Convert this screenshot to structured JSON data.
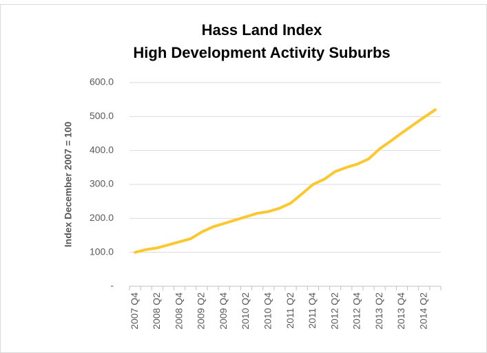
{
  "chart_data": {
    "type": "line",
    "title": [
      "Hass Land Index",
      "High Development Activity Suburbs"
    ],
    "y_label": "Index December 2007 = 100",
    "categories": [
      "2007 Q4",
      null,
      "2008 Q2",
      null,
      "2008 Q4",
      null,
      "2009 Q2",
      null,
      "2009 Q4",
      null,
      "2010 Q2",
      null,
      "2010 Q4",
      null,
      "2011 Q2",
      null,
      "2011 Q4",
      null,
      "2012 Q2",
      null,
      "2012 Q4",
      null,
      "2013 Q2",
      null,
      "2013 Q4",
      null,
      "2014 Q2",
      null
    ],
    "series": [
      {
        "name": "Hass Land Index",
        "color": "#fdc82f",
        "values": [
          100,
          108,
          113,
          122,
          131,
          140,
          160,
          175,
          185,
          195,
          205,
          215,
          220,
          230,
          245,
          272,
          300,
          315,
          338,
          350,
          360,
          375,
          405,
          428,
          452,
          475,
          498,
          520
        ]
      }
    ],
    "ylim": [
      0,
      600
    ],
    "yticks": [
      {
        "value": 0,
        "label": "-"
      },
      {
        "value": 100,
        "label": "100.0"
      },
      {
        "value": 200,
        "label": "200.0"
      },
      {
        "value": 300,
        "label": "300.0"
      },
      {
        "value": 400,
        "label": "400.0"
      },
      {
        "value": 500,
        "label": "500.0"
      },
      {
        "value": 600,
        "label": "600.0"
      }
    ],
    "grid": true
  }
}
